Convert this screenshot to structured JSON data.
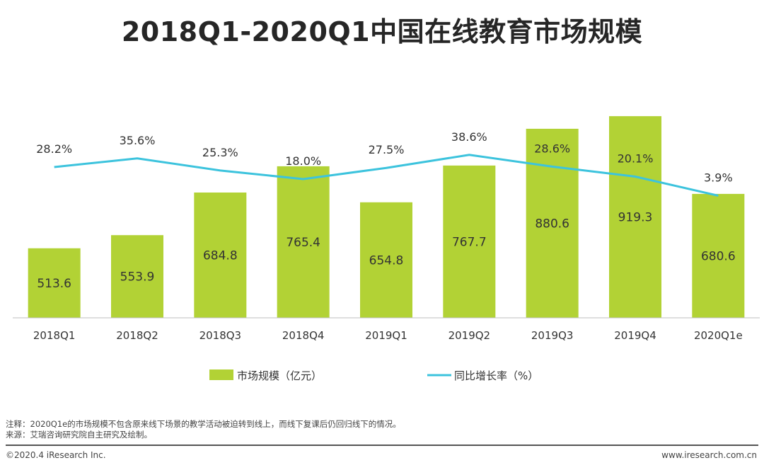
{
  "title": "2018Q1-2020Q1中国在线教育市场规模",
  "chart_data": {
    "type": "bar",
    "categories": [
      "2018Q1",
      "2018Q2",
      "2018Q3",
      "2018Q4",
      "2019Q1",
      "2019Q2",
      "2019Q3",
      "2019Q4",
      "2020Q1e"
    ],
    "series": [
      {
        "name": "市场规模（亿元）",
        "type": "bar",
        "axis": "left",
        "values": [
          513.6,
          553.9,
          684.8,
          765.4,
          654.8,
          767.7,
          880.6,
          919.3,
          680.6
        ],
        "labels": [
          "513.6",
          "553.9",
          "684.8",
          "765.4",
          "654.8",
          "767.7",
          "880.6",
          "919.3",
          "680.6"
        ]
      },
      {
        "name": "同比增长率（%）",
        "type": "line",
        "axis": "right",
        "values": [
          28.2,
          35.6,
          25.3,
          18.0,
          27.5,
          38.6,
          28.6,
          20.1,
          3.9
        ],
        "labels": [
          "28.2%",
          "35.6%",
          "25.3%",
          "18.0%",
          "27.5%",
          "38.6%",
          "28.6%",
          "20.1%",
          "3.9%"
        ]
      }
    ],
    "ylim_left": [
      300,
      950
    ],
    "ylim_right": [
      -100,
      80
    ],
    "grid": false,
    "legend": "bottom",
    "colors": {
      "bar": "#b2d235",
      "line": "#3cc3dd",
      "axis": "#bfbfbf"
    }
  },
  "notes": {
    "note": "注释：2020Q1e的市场规模不包含原来线下场景的教学活动被迫转到线上，而线下复课后仍回归线下的情况。",
    "source": "来源：艾瑞咨询研究院自主研究及绘制。"
  },
  "footer": {
    "copyright": "©2020.4 iResearch Inc.",
    "website": "www.iresearch.com.cn"
  }
}
